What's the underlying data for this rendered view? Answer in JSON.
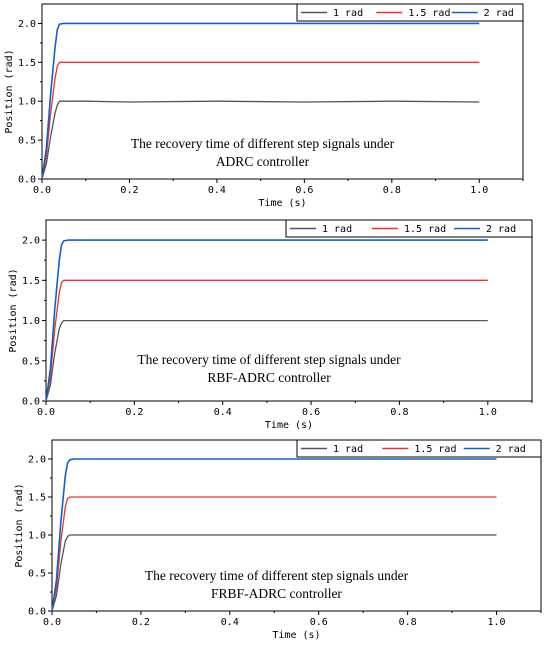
{
  "colors": {
    "series_1": "#555555",
    "series_15": "#f03030",
    "series_2": "#1060d0",
    "axis": "#000000"
  },
  "chart_data": [
    {
      "type": "line",
      "xlabel": "Time (s)",
      "ylabel": "Position (rad)",
      "xlim": [
        0,
        1.1
      ],
      "ylim": [
        0,
        2.25
      ],
      "xticks": [
        "0.0",
        "0.2",
        "0.4",
        "0.6",
        "0.8",
        "1.0"
      ],
      "yticks": [
        "0.0",
        "0.5",
        "1.0",
        "1.5",
        "2.0"
      ],
      "grid": false,
      "legend_position": "top-right",
      "annotation": [
        "The recovery time of different step signals under",
        "ADRC controller"
      ],
      "series": [
        {
          "name": "1 rad",
          "color": "#555555",
          "x": [
            0,
            0.01,
            0.02,
            0.03,
            0.035,
            0.04,
            0.06,
            0.1,
            0.2,
            0.4,
            0.6,
            0.8,
            1.0
          ],
          "y": [
            0,
            0.2,
            0.55,
            0.85,
            0.95,
            1.0,
            1.0,
            1.0,
            0.99,
            1.0,
            0.99,
            1.0,
            0.99
          ]
        },
        {
          "name": "1.5 rad",
          "color": "#f03030",
          "x": [
            0,
            0.01,
            0.02,
            0.03,
            0.035,
            0.04,
            0.06,
            0.1,
            0.4,
            0.6,
            0.8,
            1.0
          ],
          "y": [
            0,
            0.3,
            0.85,
            1.3,
            1.45,
            1.5,
            1.5,
            1.5,
            1.5,
            1.5,
            1.5,
            1.5
          ]
        },
        {
          "name": "2 rad",
          "color": "#1060d0",
          "x": [
            0,
            0.01,
            0.02,
            0.03,
            0.035,
            0.04,
            0.05,
            0.1,
            0.4,
            0.6,
            0.8,
            1.0
          ],
          "y": [
            0,
            0.4,
            1.1,
            1.7,
            1.92,
            1.99,
            2.0,
            2.0,
            2.0,
            2.0,
            2.0,
            2.0
          ]
        }
      ]
    },
    {
      "type": "line",
      "xlabel": "Time (s)",
      "ylabel": "Position (rad)",
      "xlim": [
        0,
        1.1
      ],
      "ylim": [
        0,
        2.25
      ],
      "xticks": [
        "0.0",
        "0.2",
        "0.4",
        "0.6",
        "0.8",
        "1.0"
      ],
      "yticks": [
        "0.0",
        "0.5",
        "1.0",
        "1.5",
        "2.0"
      ],
      "grid": false,
      "legend_position": "top-right",
      "annotation": [
        "The recovery time of different step signals under",
        "RBF-ADRC controller"
      ],
      "series": [
        {
          "name": "1 rad",
          "color": "#555555",
          "x": [
            0,
            0.01,
            0.02,
            0.03,
            0.035,
            0.04,
            0.06,
            0.1,
            0.4,
            0.6,
            0.8,
            1.0
          ],
          "y": [
            0,
            0.2,
            0.6,
            0.9,
            0.97,
            1.0,
            1.0,
            1.0,
            1.0,
            1.0,
            1.0,
            1.0
          ]
        },
        {
          "name": "1.5 rad",
          "color": "#f03030",
          "x": [
            0,
            0.01,
            0.02,
            0.03,
            0.035,
            0.04,
            0.06,
            0.1,
            0.4,
            0.6,
            0.8,
            1.0
          ],
          "y": [
            0,
            0.3,
            0.9,
            1.35,
            1.47,
            1.5,
            1.5,
            1.5,
            1.5,
            1.5,
            1.5,
            1.5
          ]
        },
        {
          "name": "2 rad",
          "color": "#1060d0",
          "x": [
            0,
            0.01,
            0.02,
            0.03,
            0.035,
            0.04,
            0.05,
            0.1,
            0.4,
            0.6,
            0.8,
            1.0
          ],
          "y": [
            0,
            0.4,
            1.15,
            1.75,
            1.94,
            1.99,
            2.0,
            2.0,
            2.0,
            2.0,
            2.0,
            2.0
          ]
        }
      ]
    },
    {
      "type": "line",
      "xlabel": "Time (s)",
      "ylabel": "Position (rad)",
      "xlim": [
        0,
        1.1
      ],
      "ylim": [
        0,
        2.25
      ],
      "xticks": [
        "0.0",
        "0.2",
        "0.4",
        "0.6",
        "0.8",
        "1.0"
      ],
      "yticks": [
        "0.0",
        "0.5",
        "1.0",
        "1.5",
        "2.0"
      ],
      "grid": false,
      "legend_position": "top-right",
      "annotation": [
        "The recovery time of different step signals under",
        "FRBF-ADRC controller"
      ],
      "series": [
        {
          "name": "1 rad",
          "color": "#555555",
          "x": [
            0,
            0.01,
            0.02,
            0.03,
            0.035,
            0.04,
            0.06,
            0.1,
            0.4,
            0.6,
            0.8,
            1.0
          ],
          "y": [
            0,
            0.2,
            0.62,
            0.92,
            0.98,
            1.0,
            1.0,
            1.0,
            1.0,
            1.0,
            1.0,
            1.0
          ]
        },
        {
          "name": "1.5 rad",
          "color": "#f03030",
          "x": [
            0,
            0.01,
            0.02,
            0.03,
            0.035,
            0.04,
            0.06,
            0.1,
            0.4,
            0.6,
            0.8,
            1.0
          ],
          "y": [
            0,
            0.3,
            0.92,
            1.37,
            1.48,
            1.5,
            1.5,
            1.5,
            1.5,
            1.5,
            1.5,
            1.5
          ]
        },
        {
          "name": "2 rad",
          "color": "#1060d0",
          "x": [
            0,
            0.01,
            0.02,
            0.03,
            0.035,
            0.04,
            0.05,
            0.1,
            0.4,
            0.6,
            0.8,
            1.0
          ],
          "y": [
            0,
            0.4,
            1.18,
            1.78,
            1.95,
            1.99,
            2.0,
            2.0,
            2.0,
            2.0,
            2.0,
            2.0
          ]
        }
      ]
    }
  ]
}
